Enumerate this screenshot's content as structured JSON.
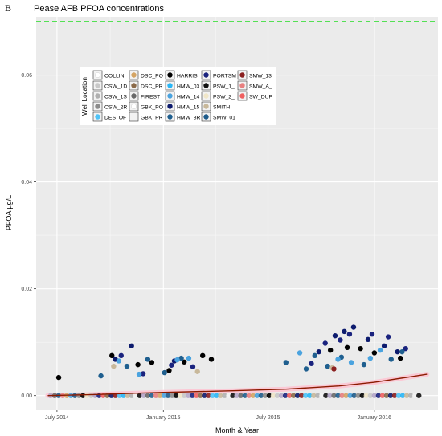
{
  "panel_label": "B",
  "chart_data": {
    "type": "scatter",
    "title": "Pease AFB PFOA concentrations",
    "xlabel": "Month & Year",
    "ylabel": "PFOA µg/L",
    "ylim": [
      -0.0026,
      0.0709
    ],
    "yticks": [
      0.0,
      0.02,
      0.04,
      0.06
    ],
    "ytick_labels": [
      "0.00",
      "0.02",
      "0.04",
      "0.06"
    ],
    "xlim": [
      "2014-05-26",
      "2016-04-20"
    ],
    "xticks": [
      "2014-07-01",
      "2015-01-01",
      "2015-07-01",
      "2016-01-01"
    ],
    "xtick_labels": [
      "July 2014",
      "January 2015",
      "July 2015",
      "January 2016"
    ],
    "grid": true,
    "reference_line": {
      "y": 0.07,
      "color": "#22dd22",
      "style": "dashed"
    },
    "trend_line": {
      "color": "#8b1a00",
      "band_color": "#ffc0d0",
      "points": [
        [
          "2014-06-15",
          0.0
        ],
        [
          "2014-09-01",
          0.0002
        ],
        [
          "2015-01-01",
          0.0006
        ],
        [
          "2015-05-01",
          0.0009
        ],
        [
          "2015-08-01",
          0.0012
        ],
        [
          "2015-11-01",
          0.0018
        ],
        [
          "2016-01-01",
          0.0025
        ],
        [
          "2016-04-01",
          0.004
        ]
      ]
    },
    "legend": {
      "title": "Well Location",
      "placement": "top-left",
      "entries": [
        {
          "name": "COLLIN",
          "color": "#ffffff"
        },
        {
          "name": "CSW_1D",
          "color": "#c8c8c8"
        },
        {
          "name": "CSW_1S",
          "color": "#b0b0b0"
        },
        {
          "name": "CSW_2R",
          "color": "#8c8c8c"
        },
        {
          "name": "DES_OF",
          "color": "#4fc3f7"
        },
        {
          "name": "DSC_PO",
          "color": "#d4a464"
        },
        {
          "name": "DSC_PR",
          "color": "#8b6b4a"
        },
        {
          "name": "FIREST",
          "color": "#6a6a6a"
        },
        {
          "name": "GBK_PO",
          "color": "#ffffff"
        },
        {
          "name": "GBK_PR",
          "color": "#f2f2f2"
        },
        {
          "name": "HARRIS",
          "color": "#000000"
        },
        {
          "name": "HMW_03",
          "color": "#29b6f6"
        },
        {
          "name": "HMW_14",
          "color": "#4aa3df"
        },
        {
          "name": "HMW_15",
          "color": "#0d1b6e"
        },
        {
          "name": "HMW_8R",
          "color": "#1f5f8f"
        },
        {
          "name": "PORTSM",
          "color": "#1a237e"
        },
        {
          "name": "PSW_1_",
          "color": "#111111"
        },
        {
          "name": "PSW_2_",
          "color": "#f0e6c8"
        },
        {
          "name": "SMITH",
          "color": "#c8b89a"
        },
        {
          "name": "SMW_01",
          "color": "#1e5b8a"
        },
        {
          "name": "SMW_13",
          "color": "#8b2020"
        },
        {
          "name": "SMW_A_",
          "color": "#e88080"
        },
        {
          "name": "SW_DUP",
          "color": "#f06060"
        }
      ]
    },
    "series": [
      {
        "name": "HARRIS",
        "color": "#000000",
        "points": [
          [
            "2014-07-04",
            0.0034
          ],
          [
            "2014-10-04",
            0.0075
          ],
          [
            "2014-11-18",
            0.0058
          ],
          [
            "2014-12-12",
            0.0062
          ],
          [
            "2015-01-11",
            0.0047
          ],
          [
            "2015-02-06",
            0.0063
          ],
          [
            "2015-03-10",
            0.0075
          ],
          [
            "2015-03-25",
            0.0068
          ],
          [
            "2015-10-17",
            0.0085
          ],
          [
            "2015-11-15",
            0.009
          ],
          [
            "2015-12-08",
            0.0088
          ],
          [
            "2016-01-01",
            0.008
          ],
          [
            "2016-02-15",
            0.007
          ]
        ]
      },
      {
        "name": "HMW_15",
        "color": "#0d1b6e",
        "points": [
          [
            "2014-10-10",
            0.0068
          ],
          [
            "2014-11-07",
            0.0093
          ],
          [
            "2015-01-20",
            0.0065
          ],
          [
            "2015-09-27",
            0.0082
          ],
          [
            "2015-10-25",
            0.0112
          ],
          [
            "2015-11-10",
            0.012
          ],
          [
            "2015-11-26",
            0.0128
          ],
          [
            "2015-12-21",
            0.0105
          ],
          [
            "2016-01-18",
            0.0093
          ],
          [
            "2016-02-10",
            0.0082
          ]
        ]
      },
      {
        "name": "PORTSM",
        "color": "#1a237e",
        "points": [
          [
            "2014-10-20",
            0.0075
          ],
          [
            "2014-11-27",
            0.0041
          ],
          [
            "2015-01-15",
            0.0057
          ],
          [
            "2015-02-21",
            0.0054
          ],
          [
            "2015-09-14",
            0.006
          ],
          [
            "2015-10-08",
            0.0098
          ],
          [
            "2015-11-03",
            0.0104
          ],
          [
            "2015-11-19",
            0.0115
          ],
          [
            "2015-12-28",
            0.0115
          ],
          [
            "2016-01-25",
            0.011
          ],
          [
            "2016-02-24",
            0.0088
          ]
        ]
      },
      {
        "name": "HMW_8R",
        "color": "#1f5f8f",
        "points": [
          [
            "2014-09-15",
            0.0037
          ],
          [
            "2014-10-30",
            0.0055
          ],
          [
            "2014-12-05",
            0.0068
          ],
          [
            "2015-01-03",
            0.0043
          ],
          [
            "2015-02-01",
            0.007
          ],
          [
            "2015-08-01",
            0.0062
          ],
          [
            "2015-09-05",
            0.005
          ],
          [
            "2015-09-20",
            0.0075
          ],
          [
            "2015-10-12",
            0.0055
          ],
          [
            "2015-11-05",
            0.0072
          ],
          [
            "2015-12-14",
            0.0058
          ],
          [
            "2016-01-30",
            0.0068
          ],
          [
            "2016-02-18",
            0.0082
          ]
        ]
      },
      {
        "name": "HMW_14",
        "color": "#4aa3df",
        "points": [
          [
            "2014-10-16",
            0.0065
          ],
          [
            "2014-11-20",
            0.004
          ],
          [
            "2015-01-25",
            0.0067
          ],
          [
            "2015-02-14",
            0.007
          ],
          [
            "2015-08-25",
            0.008
          ],
          [
            "2015-10-30",
            0.0068
          ],
          [
            "2015-11-22",
            0.0062
          ],
          [
            "2015-12-25",
            0.007
          ],
          [
            "2016-01-11",
            0.0085
          ]
        ]
      },
      {
        "name": "SMITH",
        "color": "#c8b89a",
        "points": [
          [
            "2014-10-07",
            0.0055
          ],
          [
            "2015-03-01",
            0.0045
          ],
          [
            "2015-10-20",
            0.0052
          ]
        ]
      },
      {
        "name": "SMW_13",
        "color": "#8b2020",
        "points": [
          [
            "2015-10-23",
            0.005
          ]
        ]
      }
    ]
  }
}
